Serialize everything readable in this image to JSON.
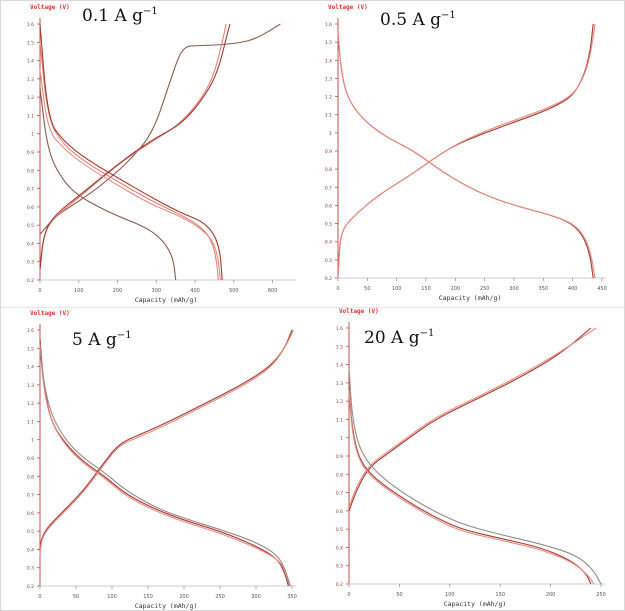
{
  "chart_data": [
    {
      "type": "line",
      "panel": "top-left",
      "title_value": "0.1",
      "title_unit": "A g",
      "title_exp": "−1",
      "ylabel": "Voltage (V)",
      "xlabel": "Capacity (mAh/g)",
      "xlim": [
        0,
        650
      ],
      "ylim": [
        0.2,
        1.6
      ],
      "xticks": [
        "0",
        "100",
        "200",
        "300",
        "400",
        "500",
        "600"
      ],
      "yticks": [
        "0.2",
        "0.3",
        "0.4",
        "0.5",
        "0.6",
        "0.7",
        "0.8",
        "0.9",
        "1",
        "1.1",
        "1.2",
        "1.3",
        "1.4",
        "1.5",
        "1.6"
      ],
      "grid": false,
      "series": [
        {
          "color": "#8b5a4a",
          "x": [
            0,
            20,
            60,
            100,
            150,
            200,
            260,
            300,
            330,
            345,
            350
          ],
          "y": [
            1.25,
            0.9,
            0.74,
            0.66,
            0.6,
            0.55,
            0.5,
            0.45,
            0.38,
            0.3,
            0.2
          ]
        },
        {
          "color": "#8b5a4a",
          "x": [
            0,
            40,
            100,
            160,
            230,
            290,
            330,
            360,
            380,
            400,
            500,
            560,
            620
          ],
          "y": [
            0.45,
            0.55,
            0.63,
            0.72,
            0.85,
            1.0,
            1.25,
            1.44,
            1.48,
            1.48,
            1.49,
            1.52,
            1.6
          ]
        },
        {
          "color": "#e0807a",
          "x": [
            0,
            20,
            60,
            120,
            200,
            280,
            360,
            410,
            440,
            455,
            460
          ],
          "y": [
            1.5,
            1.08,
            0.94,
            0.84,
            0.74,
            0.64,
            0.56,
            0.5,
            0.43,
            0.32,
            0.2
          ]
        },
        {
          "color": "#e0807a",
          "x": [
            0,
            10,
            40,
            100,
            160,
            220,
            290,
            360,
            420,
            450,
            470,
            480
          ],
          "y": [
            0.25,
            0.46,
            0.55,
            0.65,
            0.76,
            0.86,
            0.96,
            1.05,
            1.2,
            1.33,
            1.5,
            1.6
          ]
        },
        {
          "color": "#a33a2e",
          "x": [
            0,
            20,
            60,
            120,
            200,
            280,
            360,
            420,
            450,
            465,
            470
          ],
          "y": [
            1.6,
            1.08,
            0.96,
            0.86,
            0.76,
            0.66,
            0.57,
            0.52,
            0.45,
            0.35,
            0.2
          ]
        },
        {
          "color": "#a33a2e",
          "x": [
            0,
            10,
            40,
            100,
            170,
            230,
            300,
            370,
            430,
            460,
            480,
            490
          ],
          "y": [
            0.26,
            0.46,
            0.56,
            0.66,
            0.78,
            0.88,
            0.98,
            1.06,
            1.22,
            1.35,
            1.52,
            1.6
          ]
        },
        {
          "color": "#e88a80",
          "x": [
            0,
            20,
            60,
            120,
            200,
            280,
            360,
            410,
            445,
            460,
            465
          ],
          "y": [
            1.35,
            1.02,
            0.92,
            0.82,
            0.72,
            0.62,
            0.55,
            0.49,
            0.42,
            0.32,
            0.2
          ]
        }
      ]
    },
    {
      "type": "line",
      "panel": "top-right",
      "title_value": "0.5",
      "title_unit": "A g",
      "title_exp": "−1",
      "ylabel": "Voltage (V)",
      "xlabel": "Capacity (mAh/g)",
      "xlim": [
        0,
        450
      ],
      "ylim": [
        0.2,
        1.6
      ],
      "xticks": [
        "0",
        "50",
        "100",
        "150",
        "200",
        "250",
        "300",
        "350",
        "400",
        "450"
      ],
      "yticks": [
        "0.2",
        "0.3",
        "0.4",
        "0.5",
        "0.6",
        "0.7",
        "0.8",
        "0.9",
        "1",
        "1.1",
        "1.2",
        "1.3",
        "1.4",
        "1.5",
        "1.6"
      ],
      "grid": false,
      "series": [
        {
          "color": "#a33a2e",
          "x": [
            0,
            5,
            15,
            40,
            80,
            130,
            180,
            240,
            300,
            360,
            400,
            420,
            430,
            435
          ],
          "y": [
            1.55,
            1.35,
            1.2,
            1.08,
            0.98,
            0.9,
            0.78,
            0.67,
            0.6,
            0.55,
            0.5,
            0.42,
            0.32,
            0.2
          ]
        },
        {
          "color": "#a33a2e",
          "x": [
            0,
            3,
            10,
            30,
            70,
            130,
            190,
            250,
            310,
            360,
            400,
            420,
            430,
            435
          ],
          "y": [
            0.2,
            0.4,
            0.48,
            0.55,
            0.66,
            0.78,
            0.92,
            1.0,
            1.07,
            1.13,
            1.2,
            1.32,
            1.45,
            1.6
          ]
        },
        {
          "color": "#e98a80",
          "x": [
            0,
            5,
            15,
            40,
            80,
            130,
            180,
            240,
            300,
            360,
            402,
            422,
            432,
            438
          ],
          "y": [
            1.55,
            1.35,
            1.2,
            1.08,
            0.98,
            0.9,
            0.78,
            0.67,
            0.6,
            0.55,
            0.5,
            0.42,
            0.32,
            0.2
          ]
        },
        {
          "color": "#e98a80",
          "x": [
            0,
            3,
            10,
            30,
            70,
            130,
            190,
            250,
            310,
            360,
            402,
            422,
            432,
            438
          ],
          "y": [
            0.2,
            0.4,
            0.48,
            0.55,
            0.66,
            0.78,
            0.92,
            1.01,
            1.08,
            1.14,
            1.21,
            1.33,
            1.46,
            1.6
          ]
        }
      ]
    },
    {
      "type": "line",
      "panel": "bottom-left",
      "title_value": "5",
      "title_unit": "A g",
      "title_exp": "−1",
      "ylabel": "Voltage (V)",
      "xlabel": "Capacity (mAh/g)",
      "xlim": [
        0,
        350
      ],
      "ylim": [
        0.2,
        1.6
      ],
      "xticks": [
        "0",
        "50",
        "100",
        "150",
        "200",
        "250",
        "300",
        "350"
      ],
      "yticks": [
        "0.2",
        "0.3",
        "0.4",
        "0.5",
        "0.6",
        "0.7",
        "0.8",
        "0.9",
        "1",
        "1.1",
        "1.2",
        "1.3",
        "1.4",
        "1.5",
        "1.6"
      ],
      "grid": false,
      "series": [
        {
          "color": "#a33a2e",
          "x": [
            0,
            5,
            15,
            35,
            60,
            90,
            120,
            160,
            200,
            250,
            300,
            330,
            340,
            345
          ],
          "y": [
            1.55,
            1.3,
            1.1,
            0.98,
            0.88,
            0.8,
            0.7,
            0.62,
            0.56,
            0.5,
            0.42,
            0.35,
            0.27,
            0.2
          ]
        },
        {
          "color": "#a33a2e",
          "x": [
            0,
            2,
            10,
            30,
            60,
            90,
            110,
            140,
            180,
            230,
            280,
            320,
            340,
            350
          ],
          "y": [
            0.4,
            0.46,
            0.52,
            0.6,
            0.72,
            0.88,
            0.98,
            1.03,
            1.1,
            1.2,
            1.3,
            1.4,
            1.5,
            1.6
          ]
        },
        {
          "color": "#e98a80",
          "x": [
            0,
            5,
            15,
            35,
            60,
            90,
            120,
            160,
            200,
            250,
            300,
            333,
            343,
            348
          ],
          "y": [
            1.52,
            1.28,
            1.1,
            0.97,
            0.87,
            0.79,
            0.69,
            0.61,
            0.55,
            0.49,
            0.41,
            0.34,
            0.26,
            0.2
          ]
        },
        {
          "color": "#e98a80",
          "x": [
            0,
            2,
            10,
            30,
            60,
            90,
            110,
            140,
            180,
            230,
            280,
            320,
            340,
            352
          ],
          "y": [
            0.37,
            0.45,
            0.51,
            0.59,
            0.71,
            0.87,
            0.97,
            1.02,
            1.09,
            1.19,
            1.29,
            1.39,
            1.5,
            1.6
          ]
        },
        {
          "color": "#9a8a86",
          "x": [
            0,
            5,
            15,
            35,
            60,
            90,
            120,
            160,
            200,
            250,
            300,
            330,
            342,
            346
          ],
          "y": [
            1.5,
            1.32,
            1.14,
            1.0,
            0.9,
            0.82,
            0.72,
            0.63,
            0.57,
            0.51,
            0.44,
            0.37,
            0.28,
            0.2
          ]
        }
      ]
    },
    {
      "type": "line",
      "panel": "bottom-right",
      "title_value": "20",
      "title_unit": "A g",
      "title_exp": "−1",
      "ylabel": "Voltage (V)",
      "xlabel": "Capacity (mAh/g)",
      "xlim": [
        0,
        250
      ],
      "ylim": [
        0.2,
        1.6
      ],
      "xticks": [
        "0",
        "50",
        "100",
        "150",
        "200",
        "250"
      ],
      "yticks": [
        "0.2",
        "0.3",
        "0.4",
        "0.5",
        "0.6",
        "0.7",
        "0.8",
        "0.9",
        "1",
        "1.1",
        "1.2",
        "1.3",
        "1.4",
        "1.5",
        "1.6"
      ],
      "grid": false,
      "series": [
        {
          "color": "#a33a2e",
          "x": [
            0,
            3,
            10,
            25,
            50,
            80,
            110,
            150,
            190,
            220,
            235,
            240
          ],
          "y": [
            1.28,
            1.05,
            0.88,
            0.78,
            0.68,
            0.58,
            0.5,
            0.45,
            0.4,
            0.33,
            0.26,
            0.2
          ]
        },
        {
          "color": "#a33a2e",
          "x": [
            0,
            8,
            20,
            40,
            60,
            80,
            100,
            130,
            170,
            210,
            240
          ],
          "y": [
            0.6,
            0.72,
            0.84,
            0.92,
            1.0,
            1.08,
            1.14,
            1.22,
            1.33,
            1.46,
            1.6
          ]
        },
        {
          "color": "#e98a80",
          "x": [
            0,
            3,
            10,
            25,
            50,
            80,
            110,
            150,
            190,
            222,
            237,
            243
          ],
          "y": [
            1.26,
            1.03,
            0.87,
            0.77,
            0.67,
            0.57,
            0.49,
            0.44,
            0.39,
            0.32,
            0.25,
            0.2
          ]
        },
        {
          "color": "#e98a80",
          "x": [
            0,
            8,
            20,
            40,
            60,
            80,
            100,
            130,
            170,
            210,
            245
          ],
          "y": [
            0.62,
            0.74,
            0.85,
            0.93,
            1.01,
            1.09,
            1.15,
            1.23,
            1.34,
            1.47,
            1.6
          ]
        },
        {
          "color": "#9a8a86",
          "x": [
            0,
            3,
            10,
            25,
            50,
            80,
            110,
            150,
            190,
            225,
            242,
            250
          ],
          "y": [
            1.38,
            1.12,
            0.94,
            0.82,
            0.71,
            0.61,
            0.53,
            0.47,
            0.42,
            0.36,
            0.28,
            0.2
          ]
        }
      ]
    }
  ]
}
